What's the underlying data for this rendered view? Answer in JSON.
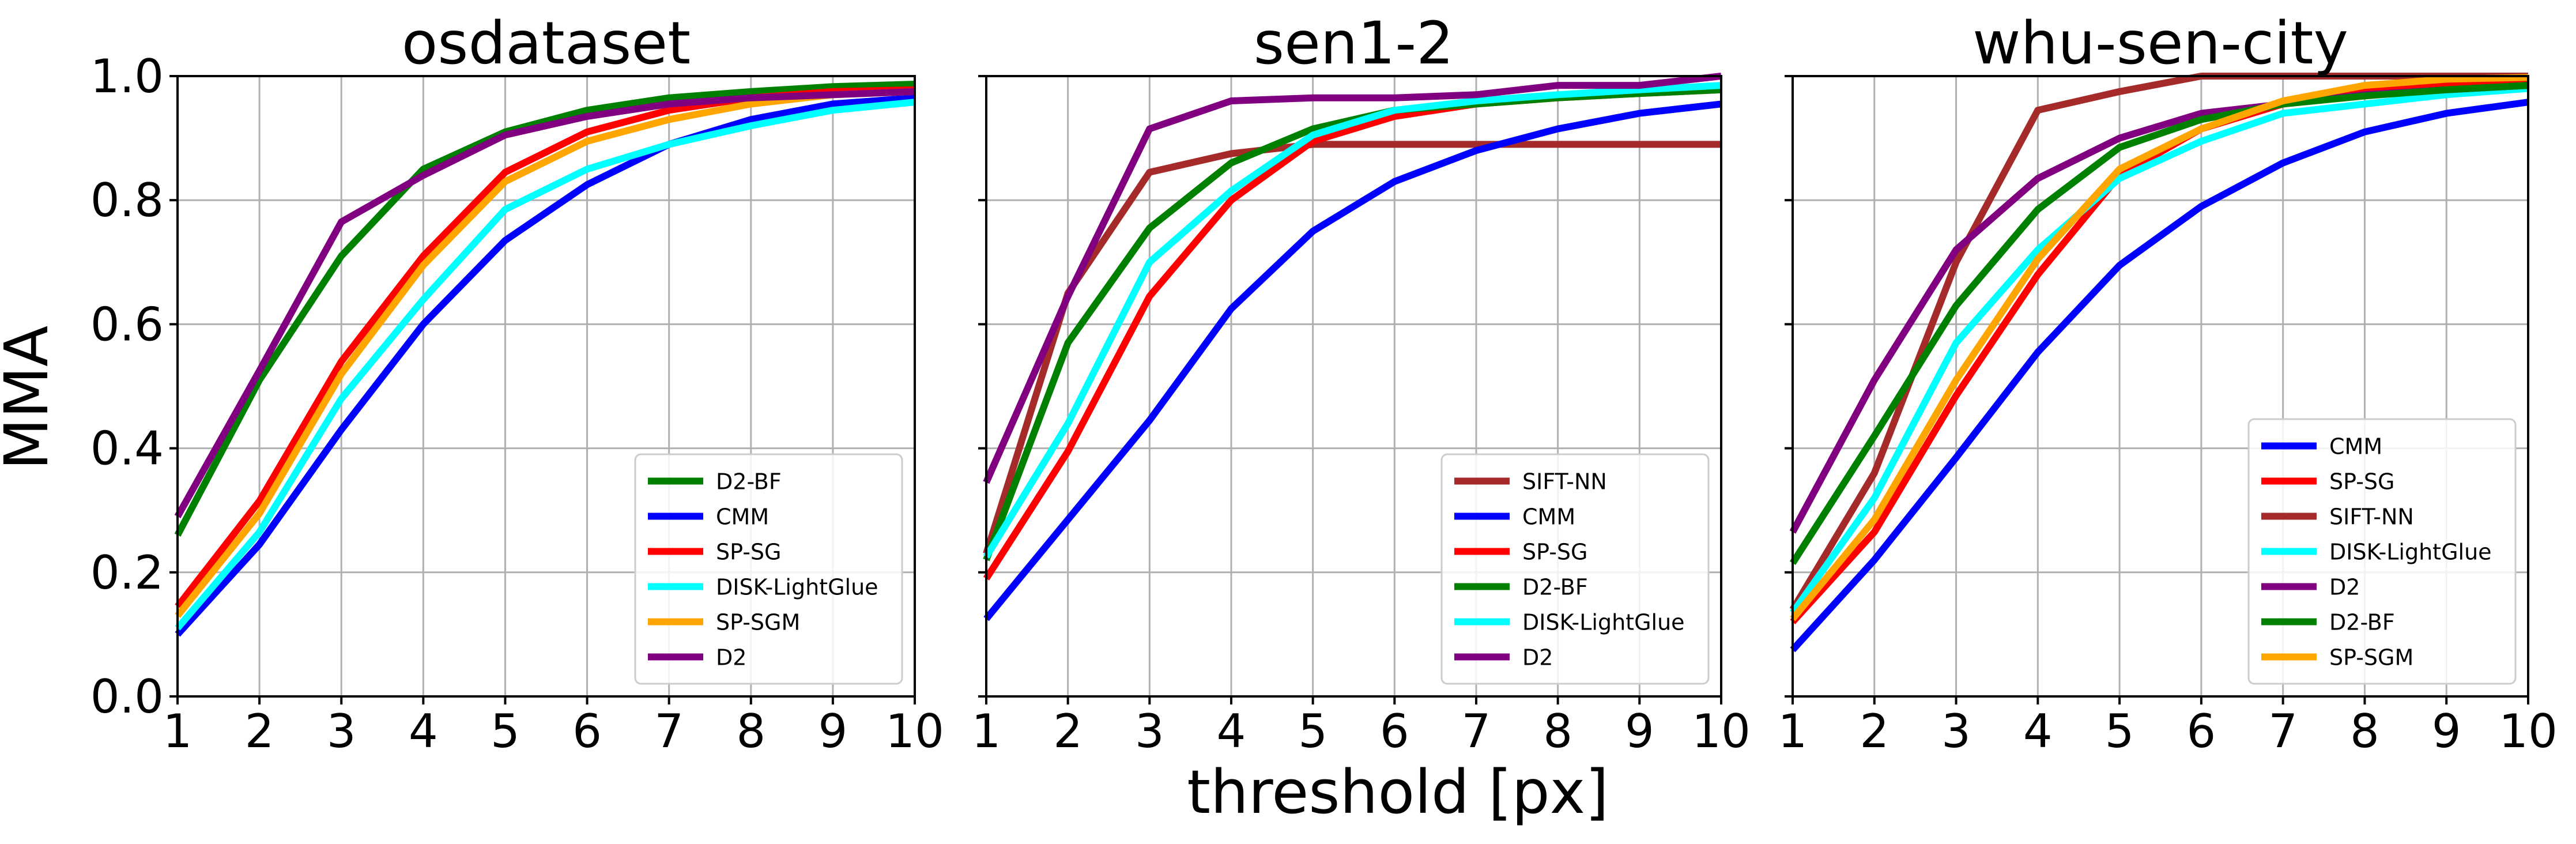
{
  "figure": {
    "ylabel": "MMA",
    "xlabel": "threshold [px]"
  },
  "chart_data": [
    {
      "type": "line",
      "title": "osdataset",
      "xlabel": "",
      "ylabel": "MMA",
      "x": [
        1,
        2,
        3,
        4,
        5,
        6,
        7,
        8,
        9,
        10
      ],
      "xlim": [
        1,
        10
      ],
      "ylim": [
        0,
        1
      ],
      "xticks": [
        "1",
        "2",
        "3",
        "4",
        "5",
        "6",
        "7",
        "8",
        "9",
        "10"
      ],
      "yticks": [
        "0.0",
        "0.2",
        "0.4",
        "0.6",
        "0.8",
        "1.0"
      ],
      "grid": true,
      "legend_position": "bottom-right",
      "series": [
        {
          "name": "D2-BF",
          "color": "#008000",
          "values": [
            0.26,
            0.51,
            0.71,
            0.85,
            0.91,
            0.945,
            0.965,
            0.975,
            0.983,
            0.987
          ]
        },
        {
          "name": "CMM",
          "color": "#0000ff",
          "values": [
            0.1,
            0.245,
            0.43,
            0.6,
            0.735,
            0.825,
            0.89,
            0.93,
            0.955,
            0.965
          ]
        },
        {
          "name": "SP-SG",
          "color": "#ff0000",
          "values": [
            0.145,
            0.315,
            0.54,
            0.71,
            0.845,
            0.91,
            0.945,
            0.965,
            0.975,
            0.978
          ]
        },
        {
          "name": "DISK-LightGlue",
          "color": "#00ffff",
          "values": [
            0.11,
            0.265,
            0.48,
            0.64,
            0.785,
            0.85,
            0.89,
            0.92,
            0.945,
            0.958
          ]
        },
        {
          "name": "SP-SGM",
          "color": "#ffa500",
          "values": [
            0.13,
            0.295,
            0.52,
            0.695,
            0.83,
            0.895,
            0.93,
            0.955,
            0.97,
            0.975
          ]
        },
        {
          "name": "D2",
          "color": "#800080",
          "values": [
            0.29,
            0.525,
            0.765,
            0.84,
            0.905,
            0.935,
            0.955,
            0.965,
            0.97,
            0.975
          ]
        }
      ]
    },
    {
      "type": "line",
      "title": "sen1-2",
      "xlabel": "threshold [px]",
      "ylabel": "",
      "x": [
        1,
        2,
        3,
        4,
        5,
        6,
        7,
        8,
        9,
        10
      ],
      "xlim": [
        1,
        10
      ],
      "ylim": [
        0,
        1
      ],
      "xticks": [
        "1",
        "2",
        "3",
        "4",
        "5",
        "6",
        "7",
        "8",
        "9",
        "10"
      ],
      "yticks": [
        "",
        "",
        "",
        "",
        "",
        ""
      ],
      "grid": true,
      "legend_position": "bottom-right",
      "series": [
        {
          "name": "SIFT-NN",
          "color": "#a52a2a",
          "values": [
            0.23,
            0.65,
            0.845,
            0.875,
            0.89,
            0.89,
            0.89,
            0.89,
            0.89,
            0.89
          ]
        },
        {
          "name": "CMM",
          "color": "#0000ff",
          "values": [
            0.125,
            0.285,
            0.445,
            0.625,
            0.75,
            0.83,
            0.88,
            0.915,
            0.94,
            0.955
          ]
        },
        {
          "name": "SP-SG",
          "color": "#ff0000",
          "values": [
            0.19,
            0.395,
            0.645,
            0.8,
            0.895,
            0.935,
            0.955,
            0.965,
            0.972,
            0.978
          ]
        },
        {
          "name": "D2-BF",
          "color": "#008000",
          "values": [
            0.22,
            0.57,
            0.755,
            0.86,
            0.915,
            0.945,
            0.955,
            0.965,
            0.972,
            0.978
          ]
        },
        {
          "name": "DISK-LightGlue",
          "color": "#00ffff",
          "values": [
            0.225,
            0.44,
            0.7,
            0.815,
            0.905,
            0.945,
            0.96,
            0.97,
            0.978,
            0.985
          ]
        },
        {
          "name": "D2",
          "color": "#800080",
          "values": [
            0.345,
            0.645,
            0.915,
            0.96,
            0.965,
            0.965,
            0.97,
            0.985,
            0.985,
            1.0
          ]
        }
      ]
    },
    {
      "type": "line",
      "title": "whu-sen-city",
      "xlabel": "",
      "ylabel": "",
      "x": [
        1,
        2,
        3,
        4,
        5,
        6,
        7,
        8,
        9,
        10
      ],
      "xlim": [
        1,
        10
      ],
      "ylim": [
        0,
        1
      ],
      "xticks": [
        "1",
        "2",
        "3",
        "4",
        "5",
        "6",
        "7",
        "8",
        "9",
        "10"
      ],
      "yticks": [
        "",
        "",
        "",
        "",
        "",
        ""
      ],
      "grid": true,
      "legend_position": "bottom-right",
      "series": [
        {
          "name": "CMM",
          "color": "#0000ff",
          "values": [
            0.075,
            0.22,
            0.385,
            0.555,
            0.695,
            0.79,
            0.86,
            0.91,
            0.94,
            0.958
          ]
        },
        {
          "name": "SP-SG",
          "color": "#ff0000",
          "values": [
            0.12,
            0.265,
            0.485,
            0.68,
            0.84,
            0.915,
            0.955,
            0.975,
            0.985,
            0.99
          ]
        },
        {
          "name": "SIFT-NN",
          "color": "#a52a2a",
          "values": [
            0.14,
            0.36,
            0.7,
            0.945,
            0.975,
            1.0,
            1.0,
            1.0,
            1.0,
            1.0
          ]
        },
        {
          "name": "DISK-LightGlue",
          "color": "#00ffff",
          "values": [
            0.135,
            0.32,
            0.57,
            0.72,
            0.835,
            0.895,
            0.94,
            0.955,
            0.97,
            0.98
          ]
        },
        {
          "name": "D2",
          "color": "#800080",
          "values": [
            0.265,
            0.51,
            0.72,
            0.835,
            0.9,
            0.94,
            0.955,
            0.97,
            0.978,
            0.985
          ]
        },
        {
          "name": "D2-BF",
          "color": "#008000",
          "values": [
            0.215,
            0.42,
            0.63,
            0.785,
            0.885,
            0.93,
            0.955,
            0.968,
            0.978,
            0.985
          ]
        },
        {
          "name": "SP-SGM",
          "color": "#ffa500",
          "values": [
            0.125,
            0.285,
            0.51,
            0.705,
            0.85,
            0.915,
            0.96,
            0.985,
            0.995,
            0.998
          ]
        }
      ]
    }
  ]
}
